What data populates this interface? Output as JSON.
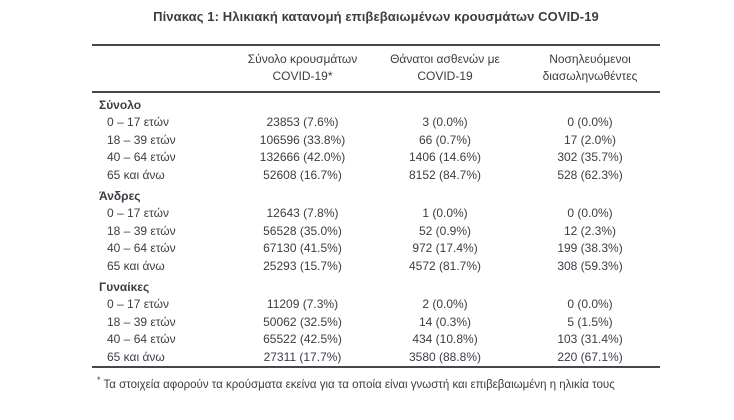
{
  "title": "Πίνακας 1: Ηλικιακή κατανομή επιβεβαιωμένων κρουσμάτων COVID-19",
  "colors": {
    "text": "#3c3c46",
    "rule": "#46464e",
    "background": "#ffffff"
  },
  "table": {
    "columns": [
      {
        "line1": "Σύνολο κρουσμάτων",
        "line2": "COVID-19*"
      },
      {
        "line1": "Θάνατοι ασθενών με",
        "line2": "COVID-19"
      },
      {
        "line1": "Νοσηλευόμενοι",
        "line2": "διασωληνωθέντες"
      }
    ],
    "sections": [
      {
        "label": "Σύνολο",
        "rows": [
          {
            "label": "0 – 17 ετών",
            "values": [
              "23853 (7.6%)",
              "3 (0.0%)",
              "0 (0.0%)"
            ]
          },
          {
            "label": "18 – 39 ετών",
            "values": [
              "106596 (33.8%)",
              "66 (0.7%)",
              "17 (2.0%)"
            ]
          },
          {
            "label": "40 – 64 ετών",
            "values": [
              "132666 (42.0%)",
              "1406 (14.6%)",
              "302 (35.7%)"
            ]
          },
          {
            "label": "65 και άνω",
            "values": [
              "52608 (16.7%)",
              "8152 (84.7%)",
              "528 (62.3%)"
            ]
          }
        ]
      },
      {
        "label": "Άνδρες",
        "rows": [
          {
            "label": "0 – 17 ετών",
            "values": [
              "12643 (7.8%)",
              "1 (0.0%)",
              "0 (0.0%)"
            ]
          },
          {
            "label": "18 – 39 ετών",
            "values": [
              "56528 (35.0%)",
              "52 (0.9%)",
              "12 (2.3%)"
            ]
          },
          {
            "label": "40 – 64 ετών",
            "values": [
              "67130 (41.5%)",
              "972 (17.4%)",
              "199 (38.3%)"
            ]
          },
          {
            "label": "65 και άνω",
            "values": [
              "25293 (15.7%)",
              "4572 (81.7%)",
              "308 (59.3%)"
            ]
          }
        ]
      },
      {
        "label": "Γυναίκες",
        "rows": [
          {
            "label": "0 – 17 ετών",
            "values": [
              "11209 (7.3%)",
              "2 (0.0%)",
              "0 (0.0%)"
            ]
          },
          {
            "label": "18 – 39 ετών",
            "values": [
              "50062 (32.5%)",
              "14 (0.3%)",
              "5 (1.5%)"
            ]
          },
          {
            "label": "40 – 64 ετών",
            "values": [
              "65522 (42.5%)",
              "434 (10.8%)",
              "103 (31.4%)"
            ]
          },
          {
            "label": "65 και άνω",
            "values": [
              "27311 (17.7%)",
              "3580 (88.8%)",
              "220 (67.1%)"
            ]
          }
        ]
      }
    ],
    "footnote_marker": "*",
    "footnote": "Τα στοιχεία αφορούν τα κρούσματα εκείνα για τα οποία είναι γνωστή και επιβεβαιωμένη η ηλικία τους"
  }
}
